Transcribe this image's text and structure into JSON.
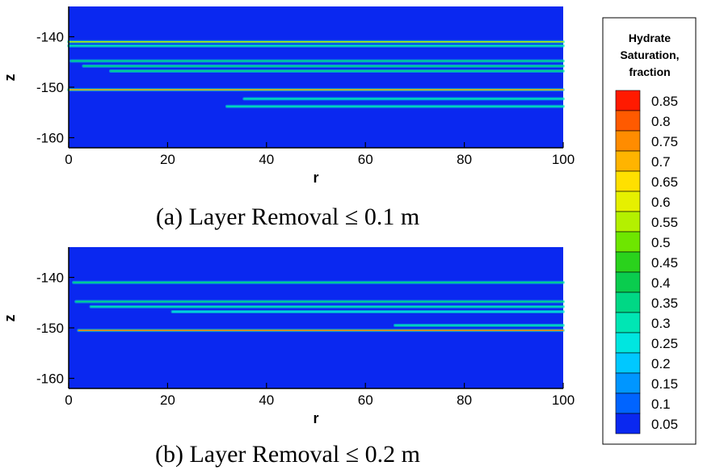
{
  "chart_data": [
    {
      "type": "heatmap",
      "xlabel": "r",
      "ylabel": "z",
      "xlim": [
        0,
        100
      ],
      "ylim": [
        -162,
        -134
      ],
      "xticks": [
        "0",
        "20",
        "40",
        "60",
        "80",
        "100"
      ],
      "yticks": [
        "-140",
        "-150",
        "-160"
      ],
      "background_saturation": 0.05,
      "caption": "(a) Layer Removal ≤ 0.1 m",
      "layers": [
        {
          "z": -141.0,
          "r_start": 0,
          "r_end": 100,
          "saturation": 0.55
        },
        {
          "z": -141.8,
          "r_start": 0,
          "r_end": 100,
          "saturation": 0.3
        },
        {
          "z": -144.8,
          "r_start": 0.5,
          "r_end": 100,
          "saturation": 0.35
        },
        {
          "z": -145.8,
          "r_start": 3,
          "r_end": 100,
          "saturation": 0.35
        },
        {
          "z": -146.8,
          "r_start": 8.5,
          "r_end": 100,
          "saturation": 0.35
        },
        {
          "z": -150.5,
          "r_start": 0,
          "r_end": 100,
          "saturation": 0.7
        },
        {
          "z": -152.3,
          "r_start": 35.5,
          "r_end": 100,
          "saturation": 0.3
        },
        {
          "z": -153.8,
          "r_start": 32,
          "r_end": 100,
          "saturation": 0.3
        }
      ]
    },
    {
      "type": "heatmap",
      "xlabel": "r",
      "ylabel": "z",
      "xlim": [
        0,
        100
      ],
      "ylim": [
        -162,
        -134
      ],
      "xticks": [
        "0",
        "20",
        "40",
        "60",
        "80",
        "100"
      ],
      "yticks": [
        "-140",
        "-150",
        "-160"
      ],
      "background_saturation": 0.05,
      "caption": "(b) Layer Removal ≤ 0.2 m",
      "layers": [
        {
          "z": -141.0,
          "r_start": 1,
          "r_end": 100,
          "saturation": 0.35
        },
        {
          "z": -144.8,
          "r_start": 1.5,
          "r_end": 100,
          "saturation": 0.35
        },
        {
          "z": -145.8,
          "r_start": 4.5,
          "r_end": 100,
          "saturation": 0.3
        },
        {
          "z": -146.8,
          "r_start": 21,
          "r_end": 100,
          "saturation": 0.25
        },
        {
          "z": -149.5,
          "r_start": 66,
          "r_end": 100,
          "saturation": 0.3
        },
        {
          "z": -150.5,
          "r_start": 2,
          "r_end": 100,
          "saturation": 0.75
        }
      ]
    }
  ],
  "legend": {
    "title_lines": [
      "Hydrate",
      "Saturation,",
      "fraction"
    ],
    "levels": [
      "0.85",
      "0.8",
      "0.75",
      "0.7",
      "0.65",
      "0.6",
      "0.55",
      "0.5",
      "0.45",
      "0.4",
      "0.35",
      "0.3",
      "0.25",
      "0.2",
      "0.15",
      "0.1",
      "0.05"
    ],
    "colors": [
      "#ff1a00",
      "#ff5a00",
      "#ff8c00",
      "#ffb400",
      "#ffe000",
      "#e6f000",
      "#b4f000",
      "#6ee600",
      "#2ad21c",
      "#0acc4e",
      "#00d885",
      "#00e6b4",
      "#00e6e0",
      "#00c8ff",
      "#0096ff",
      "#0064ff",
      "#0a28f0"
    ]
  }
}
